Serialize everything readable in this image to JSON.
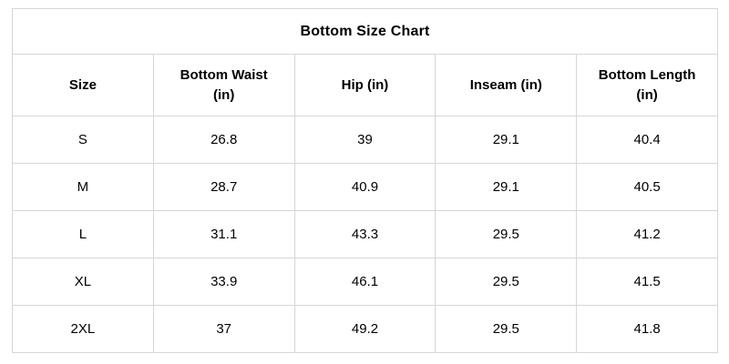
{
  "chart_data": {
    "type": "table",
    "title": "Bottom Size Chart",
    "columns": [
      "Size",
      "Bottom Waist (in)",
      "Hip (in)",
      "Inseam (in)",
      "Bottom Length (in)"
    ],
    "rows": [
      [
        "S",
        "26.8",
        "39",
        "29.1",
        "40.4"
      ],
      [
        "M",
        "28.7",
        "40.9",
        "29.1",
        "40.5"
      ],
      [
        "L",
        "31.1",
        "43.3",
        "29.5",
        "41.2"
      ],
      [
        "XL",
        "33.9",
        "46.1",
        "29.5",
        "41.5"
      ],
      [
        "2XL",
        "37",
        "49.2",
        "29.5",
        "41.8"
      ]
    ],
    "layout": {
      "grid": "on",
      "header_bold": true,
      "title_position": "top-spanning-row"
    }
  },
  "colors": {
    "background": "#ffffff",
    "text": "#000000",
    "grid_border": "#d6d6d6"
  }
}
